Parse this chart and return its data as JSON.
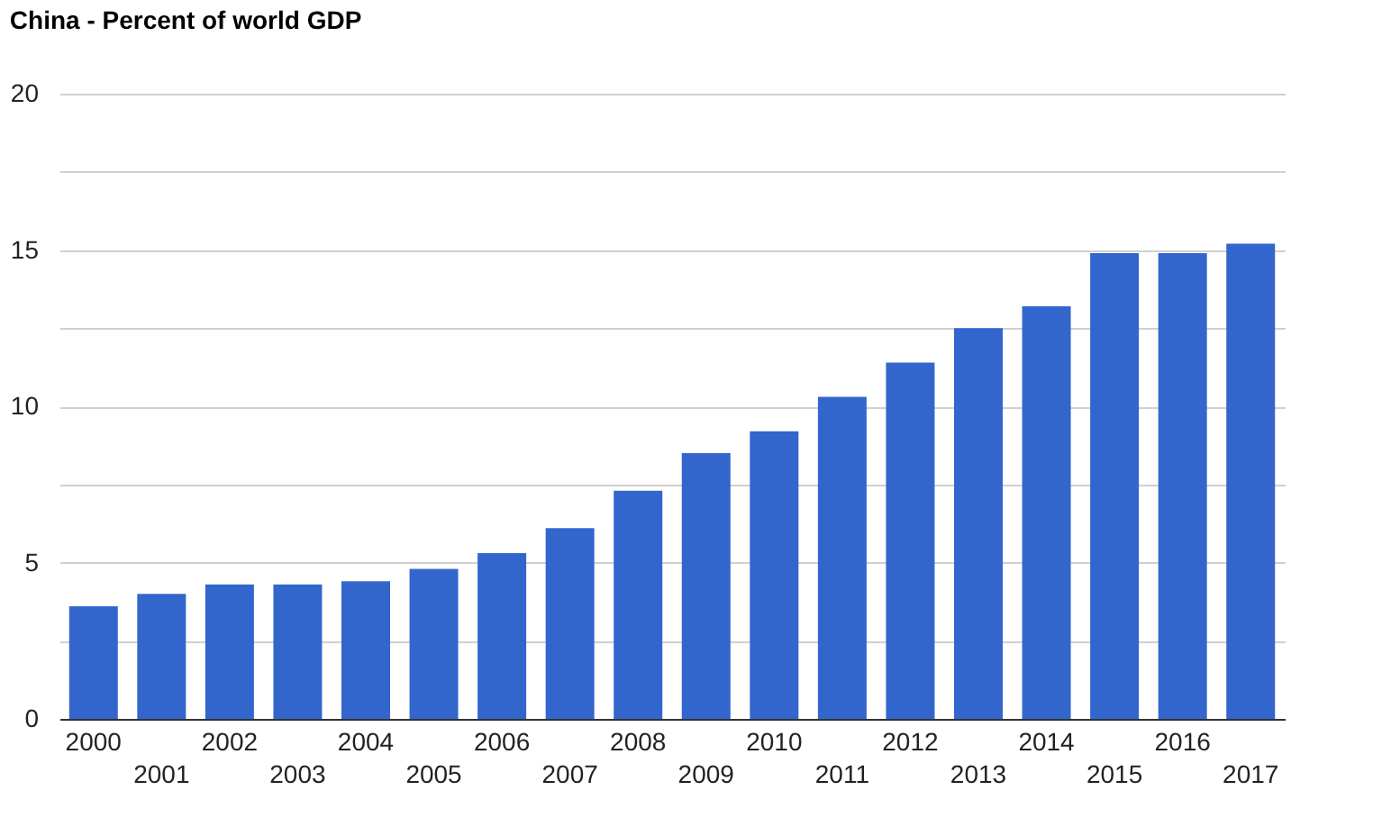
{
  "chart_data": {
    "type": "bar",
    "title": "China - Percent of world GDP",
    "categories": [
      "2000",
      "2001",
      "2002",
      "2003",
      "2004",
      "2005",
      "2006",
      "2007",
      "2008",
      "2009",
      "2010",
      "2011",
      "2012",
      "2013",
      "2014",
      "2015",
      "2016",
      "2017"
    ],
    "series": [
      {
        "color": "#3366cc",
        "values": [
          3.6,
          4.0,
          4.3,
          4.3,
          4.4,
          4.8,
          5.3,
          6.1,
          7.3,
          8.5,
          9.2,
          10.3,
          11.4,
          12.5,
          13.2,
          14.9,
          14.9,
          15.2
        ]
      }
    ],
    "ylim": [
      0,
      20
    ],
    "yticks": [
      0,
      {
        "value": 2.5,
        "label": null
      },
      5,
      {
        "value": 7.5,
        "label": null
      },
      10,
      {
        "value": 12.5,
        "label": null
      },
      15,
      {
        "value": 17.5,
        "label": null
      },
      20
    ],
    "grid": true
  }
}
